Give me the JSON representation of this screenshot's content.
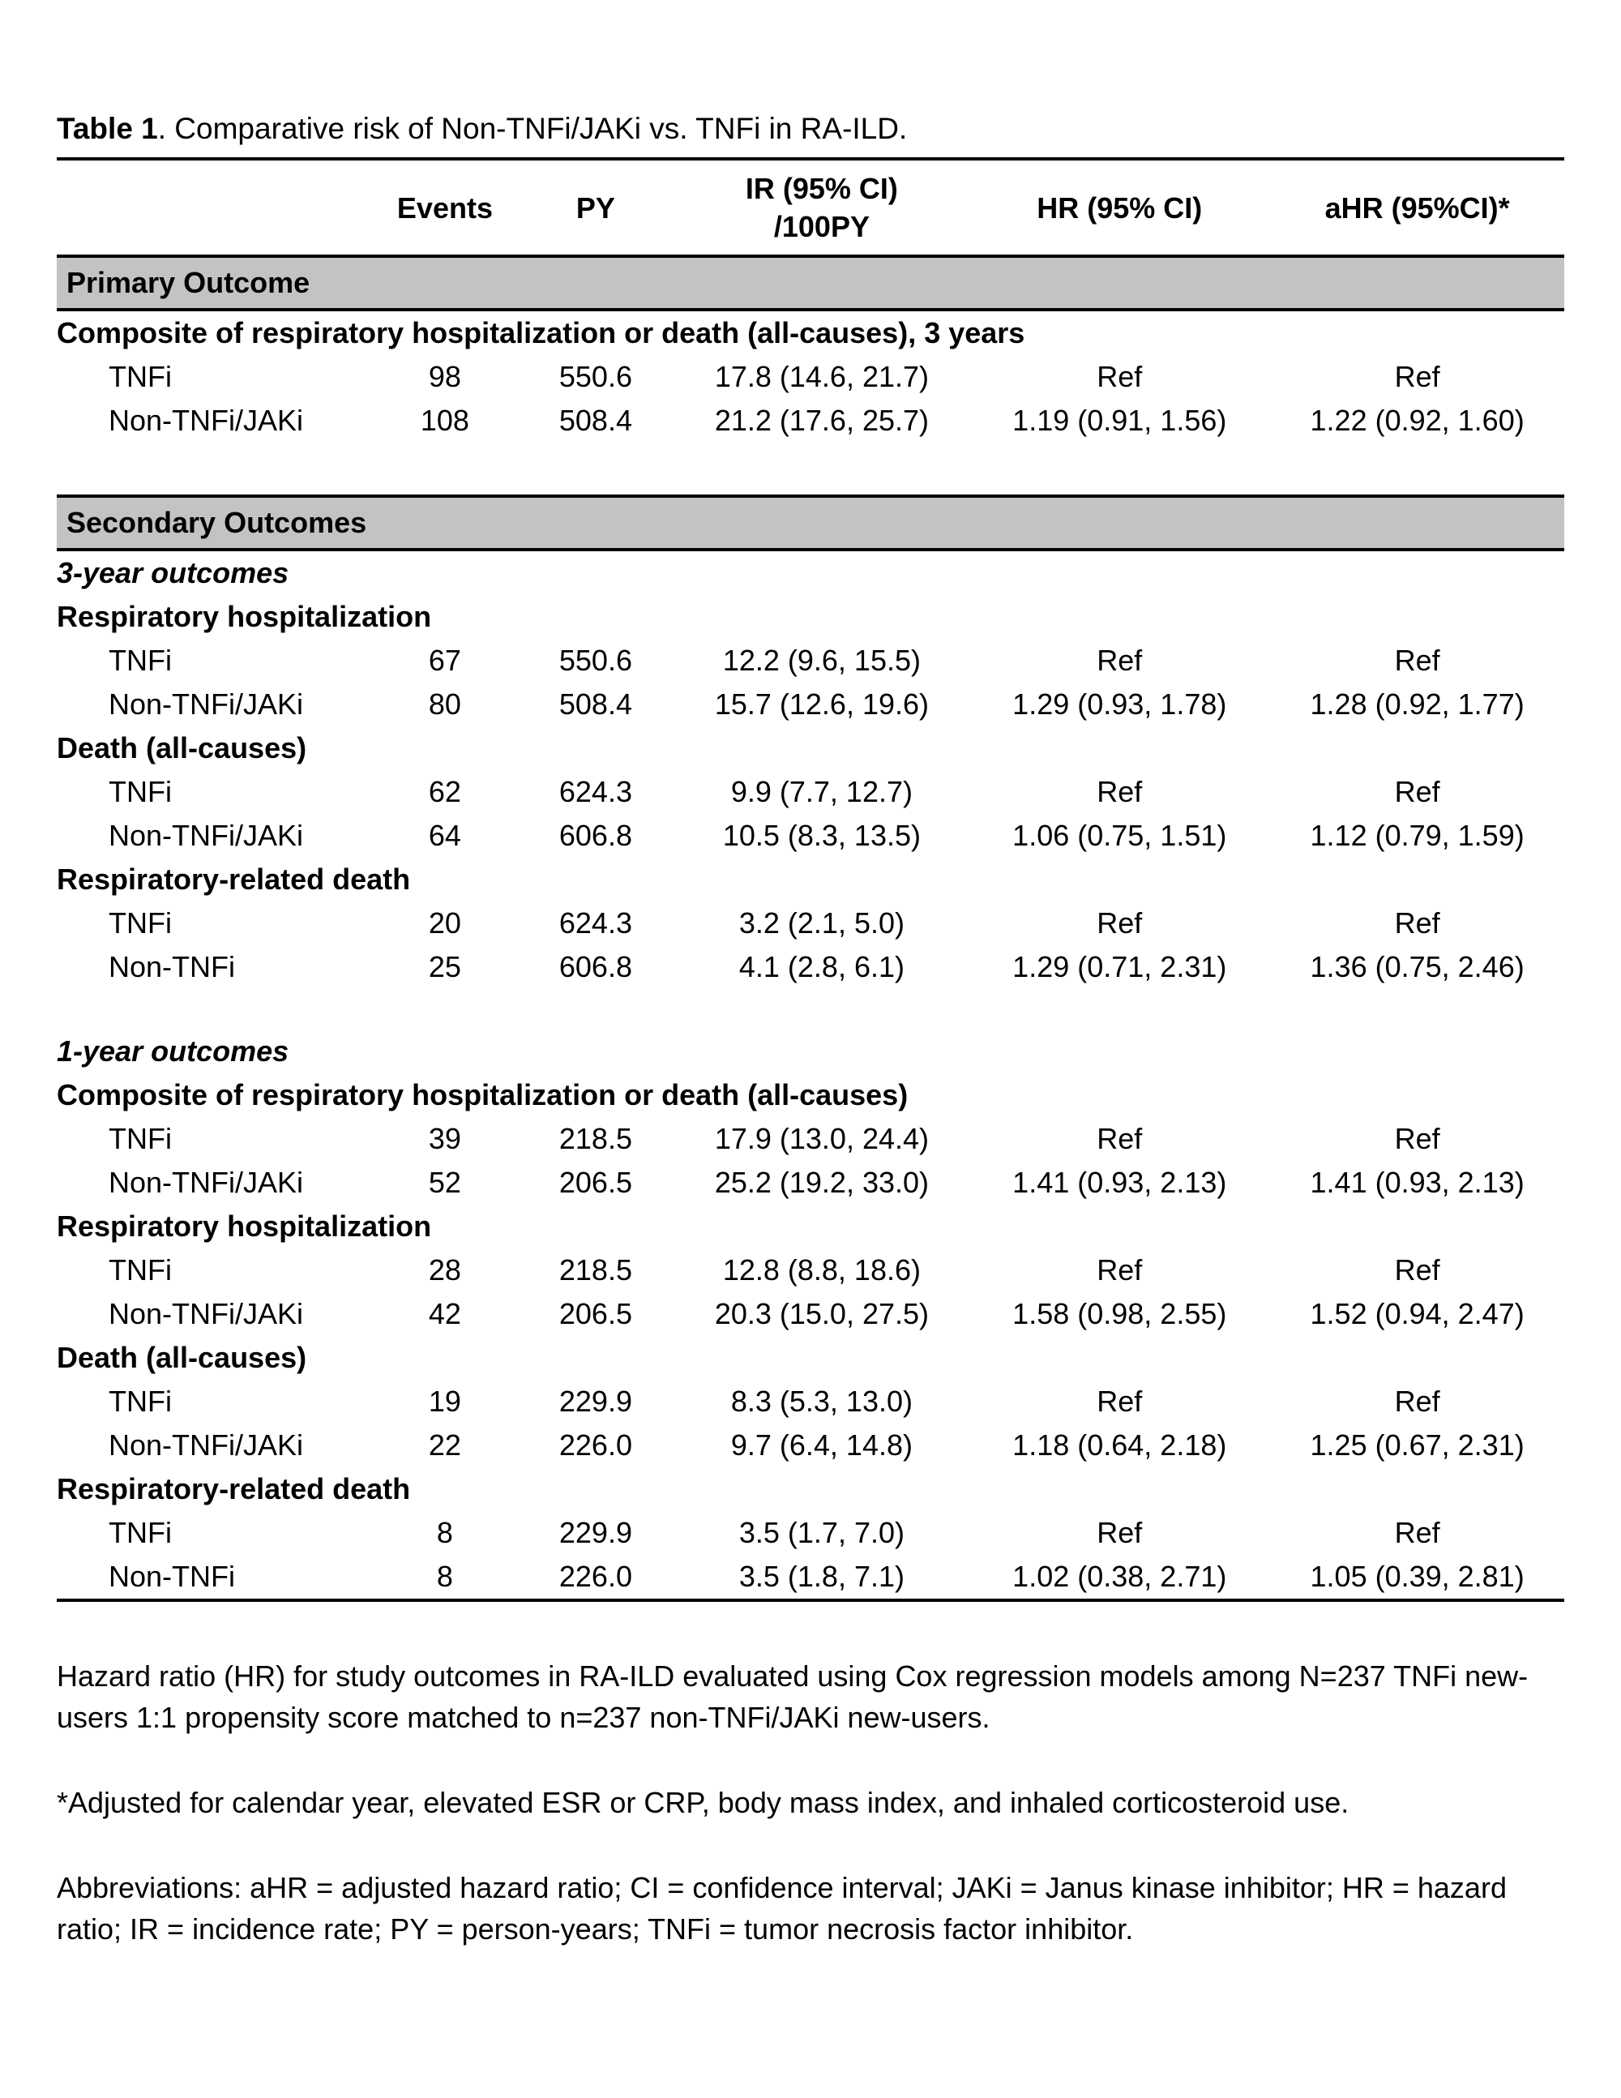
{
  "title": {
    "number": "Table 1",
    "caption": ". Comparative risk of Non-TNFi/JAKi vs. TNFi in RA-ILD."
  },
  "colors": {
    "section_bg": "#c3c3c3",
    "rule": "#000000",
    "text": "#000000"
  },
  "table": {
    "columns": [
      {
        "id": "label",
        "lines": [
          ""
        ]
      },
      {
        "id": "events",
        "lines": [
          "Events"
        ]
      },
      {
        "id": "py",
        "lines": [
          "PY"
        ]
      },
      {
        "id": "ir",
        "lines": [
          "IR (95% CI)",
          "/100PY"
        ]
      },
      {
        "id": "hr",
        "lines": [
          "HR (95% CI)"
        ]
      },
      {
        "id": "ahr",
        "lines": [
          "aHR (95%CI)*"
        ]
      }
    ],
    "rows": [
      {
        "type": "section",
        "label": "Primary Outcome"
      },
      {
        "type": "group",
        "label": "Composite of respiratory hospitalization or death (all-causes), 3 years"
      },
      {
        "type": "data",
        "label": "TNFi",
        "values": [
          "98",
          "550.6",
          "17.8 (14.6, 21.7)",
          "Ref",
          "Ref"
        ]
      },
      {
        "type": "data",
        "label": "Non-TNFi/JAKi",
        "values": [
          "108",
          "508.4",
          "21.2 (17.6, 25.7)",
          "1.19 (0.91, 1.56)",
          "1.22 (0.92, 1.60)"
        ]
      },
      {
        "type": "spacer",
        "height": 66
      },
      {
        "type": "section",
        "label": "Secondary Outcomes"
      },
      {
        "type": "group-italic",
        "label": "3-year outcomes"
      },
      {
        "type": "group",
        "label": "Respiratory hospitalization"
      },
      {
        "type": "data",
        "label": "TNFi",
        "values": [
          "67",
          "550.6",
          "12.2 (9.6, 15.5)",
          "Ref",
          "Ref"
        ]
      },
      {
        "type": "data",
        "label": "Non-TNFi/JAKi",
        "values": [
          "80",
          "508.4",
          "15.7 (12.6, 19.6)",
          "1.29 (0.93, 1.78)",
          "1.28 (0.92, 1.77)"
        ]
      },
      {
        "type": "group",
        "label": "Death (all-causes)"
      },
      {
        "type": "data",
        "label": "TNFi",
        "values": [
          "62",
          "624.3",
          "9.9 (7.7, 12.7)",
          "Ref",
          "Ref"
        ]
      },
      {
        "type": "data",
        "label": "Non-TNFi/JAKi",
        "values": [
          "64",
          "606.8",
          "10.5 (8.3, 13.5)",
          "1.06 (0.75, 1.51)",
          "1.12 (0.79, 1.59)"
        ]
      },
      {
        "type": "group",
        "label": "Respiratory-related death"
      },
      {
        "type": "data",
        "label": "TNFi",
        "values": [
          "20",
          "624.3",
          "3.2 (2.1, 5.0)",
          "Ref",
          "Ref"
        ]
      },
      {
        "type": "data",
        "label": "Non-TNFi",
        "values": [
          "25",
          "606.8",
          "4.1 (2.8, 6.1)",
          "1.29 (0.71, 2.31)",
          "1.36 (0.75, 2.46)"
        ]
      },
      {
        "type": "spacer",
        "height": 50
      },
      {
        "type": "group-italic",
        "label": "1-year outcomes"
      },
      {
        "type": "group",
        "label": "Composite of respiratory hospitalization or death (all-causes)"
      },
      {
        "type": "data",
        "label": "TNFi",
        "values": [
          "39",
          "218.5",
          "17.9 (13.0, 24.4)",
          "Ref",
          "Ref"
        ]
      },
      {
        "type": "data",
        "label": "Non-TNFi/JAKi",
        "values": [
          "52",
          "206.5",
          "25.2 (19.2, 33.0)",
          "1.41 (0.93, 2.13)",
          "1.41 (0.93, 2.13)"
        ]
      },
      {
        "type": "group",
        "label": "Respiratory hospitalization"
      },
      {
        "type": "data",
        "label": "TNFi",
        "values": [
          "28",
          "218.5",
          "12.8 (8.8, 18.6)",
          "Ref",
          "Ref"
        ]
      },
      {
        "type": "data",
        "label": "Non-TNFi/JAKi",
        "values": [
          "42",
          "206.5",
          "20.3 (15.0, 27.5)",
          "1.58 (0.98, 2.55)",
          "1.52 (0.94, 2.47)"
        ]
      },
      {
        "type": "group",
        "label": "Death (all-causes)"
      },
      {
        "type": "data",
        "label": "TNFi",
        "values": [
          "19",
          "229.9",
          "8.3 (5.3, 13.0)",
          "Ref",
          "Ref"
        ]
      },
      {
        "type": "data",
        "label": "Non-TNFi/JAKi",
        "values": [
          "22",
          "226.0",
          "9.7 (6.4, 14.8)",
          "1.18 (0.64, 2.18)",
          "1.25 (0.67, 2.31)"
        ]
      },
      {
        "type": "group",
        "label": "Respiratory-related death"
      },
      {
        "type": "data",
        "label": "TNFi",
        "values": [
          "8",
          "229.9",
          "3.5 (1.7, 7.0)",
          "Ref",
          "Ref"
        ]
      },
      {
        "type": "data",
        "label": "Non-TNFi",
        "values": [
          "8",
          "226.0",
          "3.5 (1.8, 7.1)",
          "1.02 (0.38, 2.71)",
          "1.05 (0.39, 2.81)"
        ]
      }
    ]
  },
  "footnotes": [
    "Hazard ratio (HR) for study outcomes in RA-ILD evaluated using Cox regression models among N=237 TNFi new-users 1:1 propensity score matched to n=237 non-TNFi/JAKi new-users.",
    "*Adjusted for calendar year, elevated ESR or CRP, body mass index, and inhaled corticosteroid use.",
    "Abbreviations: aHR = adjusted hazard ratio; CI = confidence interval; JAKi = Janus kinase inhibitor; HR = hazard ratio; IR = incidence rate; PY = person-years; TNFi = tumor necrosis factor inhibitor."
  ]
}
